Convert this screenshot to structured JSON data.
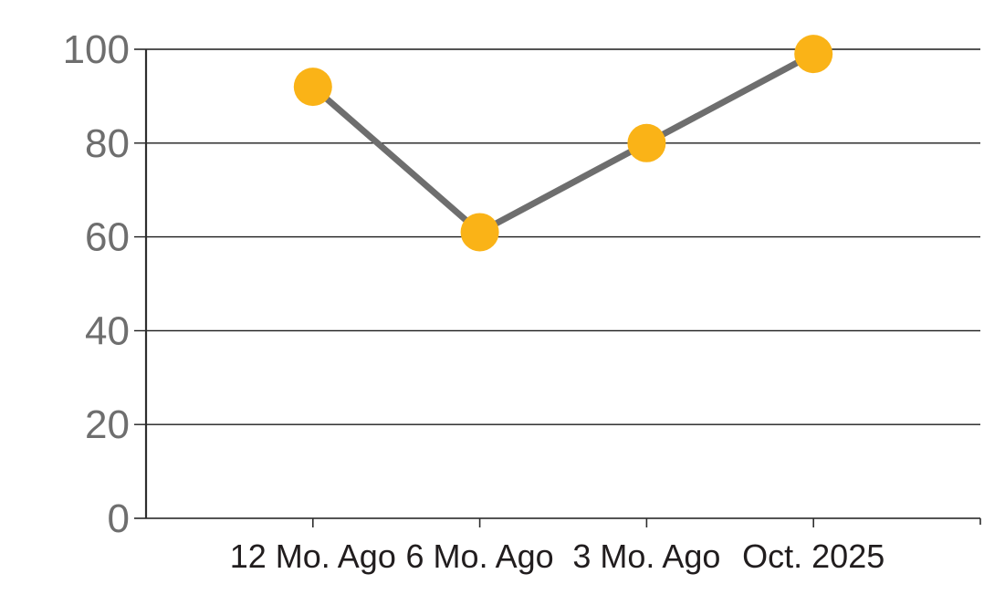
{
  "chart_data": {
    "type": "line",
    "categories": [
      "12 Mo. Ago",
      "6 Mo. Ago",
      "3 Mo. Ago",
      "Oct. 2025"
    ],
    "values": [
      92,
      61,
      80,
      99
    ],
    "title": "",
    "xlabel": "",
    "ylabel": "",
    "ylim": [
      0,
      100
    ],
    "yticks": [
      0,
      20,
      40,
      60,
      80,
      100
    ],
    "grid": true,
    "legend": false,
    "marker_shape": "circle",
    "colors": {
      "marker": "#FAB317",
      "line": "#6E6E6E",
      "grid": "#1C1C1C",
      "axis": "#2E2E2E",
      "y_tick_label": "#6E6E6E",
      "x_tick_label": "#211D1E",
      "background": "#FFFFFF"
    }
  }
}
